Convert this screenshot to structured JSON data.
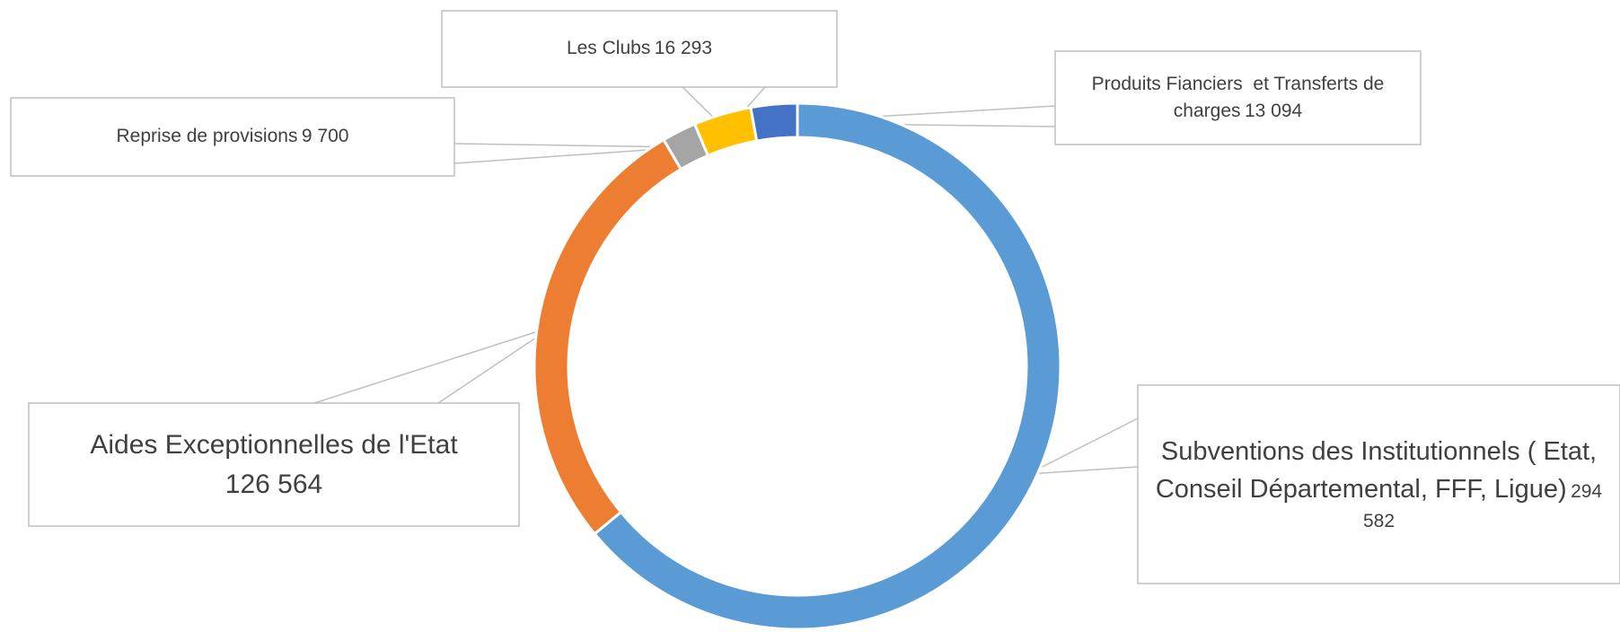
{
  "chart_data": {
    "type": "donut",
    "categories": [
      "Subventions des Institutionnels ( Etat, Conseil Départemental, FFF, Ligue)",
      "Aides Exceptionnelles de l'Etat",
      "Reprise de provisions",
      "Les Clubs",
      "Produits Fianciers  et Transferts de charges"
    ],
    "values": [
      294582,
      126564,
      9700,
      16293,
      13094
    ],
    "value_labels": [
      "294 582",
      "126 564",
      "9 700",
      "16 293",
      "13 094"
    ],
    "colors": [
      "#5b9bd5",
      "#ed7d31",
      "#a5a5a5",
      "#ffc000",
      "#4472c4"
    ]
  }
}
